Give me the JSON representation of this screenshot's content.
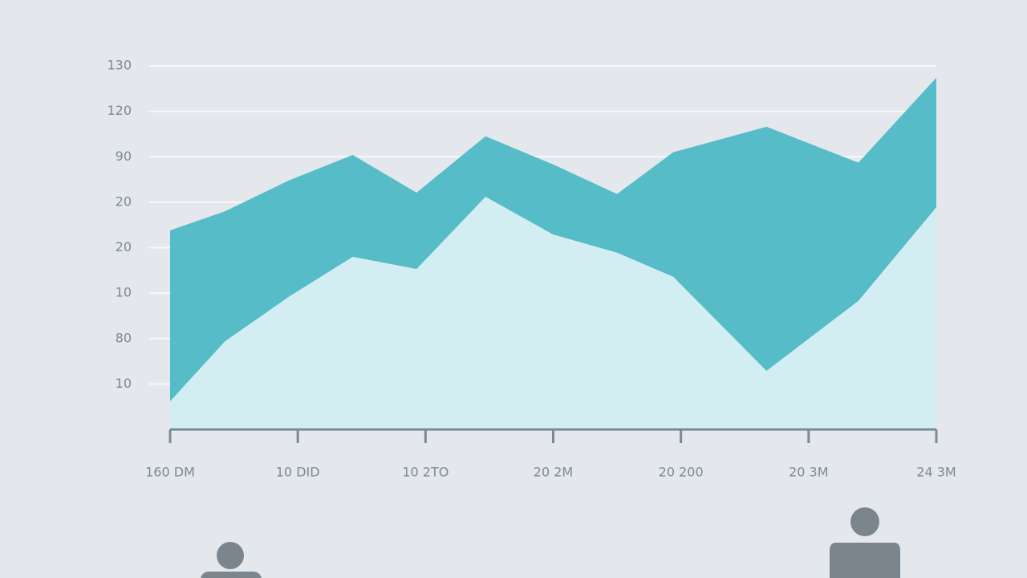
{
  "chart_data": {
    "type": "area",
    "stacked": true,
    "x": [
      0,
      0.43,
      0.93,
      1.43,
      1.93,
      2.47,
      3.0,
      3.5,
      3.94,
      4.67,
      5.39,
      6.0
    ],
    "series": [
      {
        "color": "#d3eef2",
        "values": [
          0.62,
          1.94,
          2.92,
          3.8,
          3.53,
          5.12,
          4.29,
          3.89,
          3.36,
          1.29,
          2.83,
          4.89
        ]
      },
      {
        "color": "#55bcc8",
        "values": [
          3.76,
          2.86,
          2.56,
          2.24,
          1.68,
          1.33,
          1.54,
          1.29,
          2.74,
          5.37,
          3.04,
          2.85
        ]
      }
    ],
    "xlim": [
      0,
      6
    ],
    "xticks": [
      {
        "value": 0,
        "label": "160 DM"
      },
      {
        "value": 1,
        "label": "10 DID"
      },
      {
        "value": 2,
        "label": "10 2TO"
      },
      {
        "value": 3,
        "label": "20 2M"
      },
      {
        "value": 4,
        "label": "20 200"
      },
      {
        "value": 5,
        "label": "20 3M"
      },
      {
        "value": 6,
        "label": "24 3M"
      }
    ],
    "ylim": [
      0,
      8
    ],
    "yticks": [
      {
        "value": 1,
        "label": "10"
      },
      {
        "value": 2,
        "label": "80"
      },
      {
        "value": 3,
        "label": "10"
      },
      {
        "value": 4,
        "label": "20"
      },
      {
        "value": 5,
        "label": "20"
      },
      {
        "value": 6,
        "label": "90"
      },
      {
        "value": 7,
        "label": "120"
      },
      {
        "value": 8,
        "label": "130"
      }
    ],
    "grid": true
  }
}
